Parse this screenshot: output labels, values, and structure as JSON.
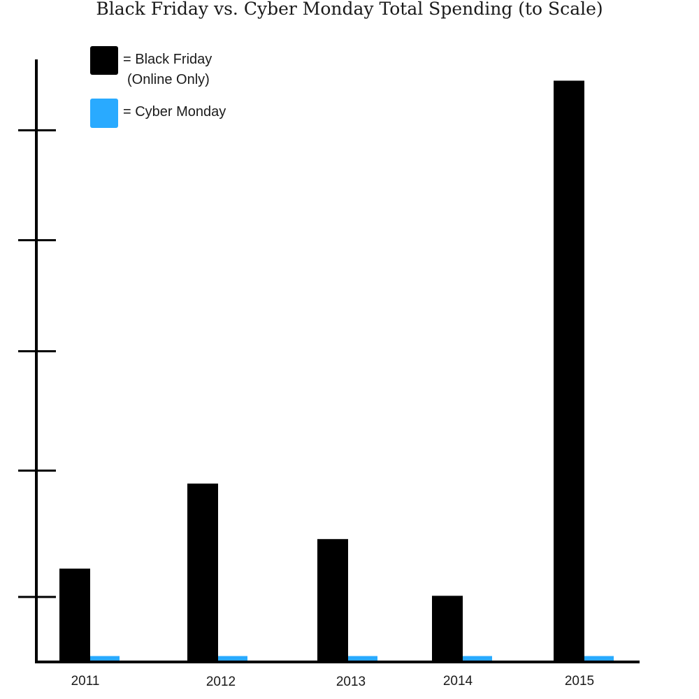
{
  "chart_data": {
    "type": "bar",
    "title": "Black Friday vs. Cyber Monday Total Spending (to Scale)",
    "categories": [
      "2011",
      "2012",
      "2013",
      "2014",
      "2015"
    ],
    "series": [
      {
        "name": "= Black Friday (Online Only)",
        "values": [
          7.9,
          15.1,
          10.4,
          5.6,
          49.2
        ],
        "color": "#000000"
      },
      {
        "name": "= Cyber Monday",
        "values": [
          0.5,
          0.5,
          0.5,
          0.5,
          0.5
        ],
        "color": "#29aaff"
      }
    ],
    "ylim": [
      0,
      51
    ],
    "yticks": [
      5.5,
      16.2,
      26.3,
      35.7,
      45.0
    ],
    "legend_position": "top-left",
    "grid": false
  },
  "legend": {
    "black_friday_line1": "= Black Friday",
    "black_friday_line2": "(Online Only)",
    "cyber_monday": "= Cyber Monday"
  }
}
